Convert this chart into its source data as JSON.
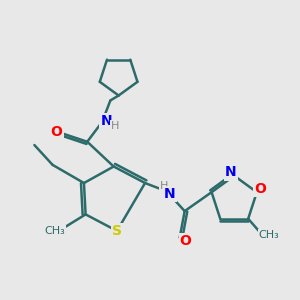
{
  "bg_color": "#e8e8e8",
  "bond_color": "#2d6b6b",
  "bond_width": 1.8,
  "atom_colors": {
    "S": "#cccc00",
    "O": "#ff0000",
    "N": "#0000ee",
    "H": "#888888",
    "C": "#2d6b6b"
  },
  "font_size": 9
}
